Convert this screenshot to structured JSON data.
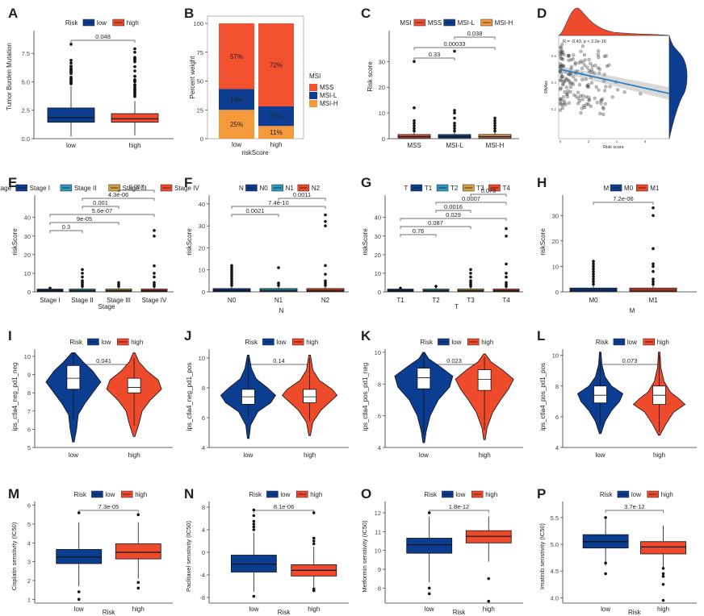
{
  "figure": {
    "title": ""
  },
  "colors": {
    "low": "#0b3d91",
    "high": "#ee4a2c",
    "mss": "#f2512f",
    "msil": "#0e3e92",
    "msih": "#f49a3c",
    "lowline": "#1a1a1a"
  },
  "chart_data": [
    {
      "panel": "A",
      "type": "box",
      "legend_title": "Risk",
      "groups": [
        "low",
        "high"
      ],
      "xlabel": "",
      "ylabel": "Tumor Burden Mutation",
      "yticks": [
        0.0,
        2.5,
        5.0,
        7.5
      ],
      "ylim": [
        0,
        9.5
      ],
      "pvalue": "0.048",
      "boxes": [
        {
          "q1": 1.45,
          "med": 1.85,
          "q3": 2.7,
          "wlo": 0.2,
          "whi": 4.6
        },
        {
          "q1": 1.45,
          "med": 1.75,
          "q3": 2.2,
          "wlo": 0.3,
          "whi": 3.3
        }
      ]
    },
    {
      "panel": "B",
      "type": "stacked-bar",
      "legend_title": "MSI",
      "categories": [
        "low",
        "high"
      ],
      "xlabel": "riskScore",
      "ylabel": "Percent weight",
      "yticks": [
        "0",
        "25",
        "50",
        "75",
        "100"
      ],
      "series": [
        {
          "name": "MSS",
          "values": [
            57,
            72
          ]
        },
        {
          "name": "MSI-L",
          "values": [
            18,
            17
          ]
        },
        {
          "name": "MSI-H",
          "values": [
            25,
            11
          ]
        }
      ],
      "labels": [
        [
          "57%",
          "18%",
          "25%"
        ],
        [
          "72%",
          "17%",
          "11%"
        ]
      ]
    },
    {
      "panel": "C",
      "type": "box",
      "legend_title": "MSI",
      "groups": [
        "MSS",
        "MSI-L",
        "MSI-H"
      ],
      "xlabel": "",
      "ylabel": "Risk score",
      "yticks": [
        0,
        10,
        20,
        30
      ],
      "ylim": [
        0,
        42
      ],
      "pvalues": [
        "0.33",
        "0.00033",
        "0.038"
      ]
    },
    {
      "panel": "D",
      "type": "scatter",
      "xlabel": "Risk score",
      "ylabel": "RNAss",
      "stat": "R = -0.43, p < 2.2e-16",
      "xticks": [
        "0",
        "2",
        "4",
        "6"
      ],
      "yticks": [
        "0.2",
        "0.4",
        "0.6"
      ]
    },
    {
      "panel": "E",
      "type": "box",
      "legend_title": "Stage",
      "groups": [
        "Stage I",
        "Stage II",
        "Stage III",
        "Stage IV"
      ],
      "xlabel": "Stage",
      "ylabel": "riskScore",
      "yticks": [
        0,
        10,
        20,
        30,
        40
      ],
      "ylim": [
        0,
        52
      ],
      "pvalues": [
        "0.3",
        "9e-05",
        "5.6e-07",
        "0.001",
        "4.3e-06",
        "0.057"
      ]
    },
    {
      "panel": "F",
      "type": "box",
      "legend_title": "N",
      "groups": [
        "N0",
        "N1",
        "N2"
      ],
      "xlabel": "N",
      "ylabel": "riskScore",
      "yticks": [
        0,
        10,
        20,
        30,
        40
      ],
      "ylim": [
        0,
        44
      ],
      "pvalues": [
        "0.0021",
        "7.4e-10",
        "0.0011"
      ]
    },
    {
      "panel": "G",
      "type": "box",
      "legend_title": "T",
      "groups": [
        "T1",
        "T2",
        "T3",
        "T4"
      ],
      "xlabel": "T",
      "ylabel": "riskScore",
      "yticks": [
        0,
        10,
        20,
        30,
        40
      ],
      "ylim": [
        0,
        52
      ],
      "pvalues": [
        "0.76",
        "0.087",
        "0.029",
        "0.0016",
        "0.0007",
        "0.076"
      ]
    },
    {
      "panel": "H",
      "type": "box",
      "legend_title": "M",
      "groups": [
        "M0",
        "M1"
      ],
      "xlabel": "M",
      "ylabel": "riskScore",
      "yticks": [
        0,
        10,
        20,
        30
      ],
      "ylim": [
        0,
        38
      ],
      "pvalue": "7.2e-06"
    },
    {
      "panel": "I",
      "type": "violin",
      "legend_title": "Risk",
      "groups": [
        "low",
        "high"
      ],
      "ylabel": "ips_ctla4_neg_pd1_neg",
      "yticks": [
        5,
        6,
        7,
        8,
        9,
        10
      ],
      "ylim": [
        5,
        10.4
      ],
      "pvalue": "0.041"
    },
    {
      "panel": "J",
      "type": "violin",
      "legend_title": "Risk",
      "groups": [
        "low",
        "high"
      ],
      "ylabel": "ips_ctla4_neg_pd1_pos",
      "yticks": [
        4,
        6,
        8,
        10
      ],
      "ylim": [
        4,
        10.6
      ],
      "pvalue": "0.14"
    },
    {
      "panel": "K",
      "type": "violin",
      "legend_title": "Risk",
      "groups": [
        "low",
        "high"
      ],
      "ylabel": "ips_ctla4_pos_pd1_neg",
      "yticks": [
        4,
        6,
        8,
        10
      ],
      "ylim": [
        4,
        10.2
      ],
      "pvalue": "0.023"
    },
    {
      "panel": "L",
      "type": "violin",
      "legend_title": "Risk",
      "groups": [
        "low",
        "high"
      ],
      "ylabel": "ips_ctla4_pos_pd1_pos",
      "yticks": [
        4,
        6,
        8,
        10
      ],
      "ylim": [
        4,
        10.4
      ],
      "pvalue": "0.073"
    },
    {
      "panel": "M",
      "type": "box",
      "legend_title": "Risk",
      "groups": [
        "low",
        "high"
      ],
      "xlabel": "Risk",
      "ylabel": "Cisplatin senstivity (IC50)",
      "yticks": [
        1,
        2,
        3,
        4,
        5,
        6
      ],
      "ylim": [
        0.8,
        6.2
      ],
      "pvalue": "7.3e-05",
      "boxes": [
        {
          "q1": 2.9,
          "med": 3.25,
          "q3": 3.65,
          "wlo": 1.7,
          "whi": 5.1
        },
        {
          "q1": 3.15,
          "med": 3.5,
          "q3": 3.95,
          "wlo": 2.1,
          "whi": 5.1
        }
      ]
    },
    {
      "panel": "N",
      "type": "box",
      "legend_title": "Risk",
      "groups": [
        "low",
        "high"
      ],
      "xlabel": "Risk",
      "ylabel": "Paclitaxel senstivity (IC50)",
      "yticks": [
        -8,
        -4,
        0,
        4,
        8
      ],
      "ylim": [
        -9,
        9
      ],
      "pvalue": "8.1e-06",
      "boxes": [
        {
          "q1": -3.5,
          "med": -2.1,
          "q3": -0.5,
          "wlo": -7,
          "whi": 3.5
        },
        {
          "q1": -4.2,
          "med": -3.2,
          "q3": -2.2,
          "wlo": -6.5,
          "whi": 1.0
        }
      ]
    },
    {
      "panel": "O",
      "type": "box",
      "legend_title": "Risk",
      "groups": [
        "low",
        "high"
      ],
      "xlabel": "Risk",
      "ylabel": "Metformin senstivity (IC50)",
      "yticks": [
        8,
        9,
        10,
        11,
        12
      ],
      "ylim": [
        7.2,
        12.6
      ],
      "pvalue": "1.8e-12",
      "boxes": [
        {
          "q1": 9.85,
          "med": 10.3,
          "q3": 10.65,
          "wlo": 8.3,
          "whi": 11.8
        },
        {
          "q1": 10.4,
          "med": 10.75,
          "q3": 11.05,
          "wlo": 9.4,
          "whi": 11.8
        }
      ]
    },
    {
      "panel": "P",
      "type": "box",
      "legend_title": "Risk",
      "groups": [
        "low",
        "high"
      ],
      "xlabel": "Risk",
      "ylabel": "Imatinib senstivity (IC50)",
      "yticks": [
        4.0,
        4.5,
        5.0,
        5.5
      ],
      "ylim": [
        3.9,
        5.8
      ],
      "pvalue": "3.7e-12",
      "boxes": [
        {
          "q1": 4.93,
          "med": 5.05,
          "q3": 5.18,
          "wlo": 4.6,
          "whi": 5.5
        },
        {
          "q1": 4.82,
          "med": 4.95,
          "q3": 5.05,
          "wlo": 4.55,
          "whi": 5.35
        }
      ]
    }
  ]
}
